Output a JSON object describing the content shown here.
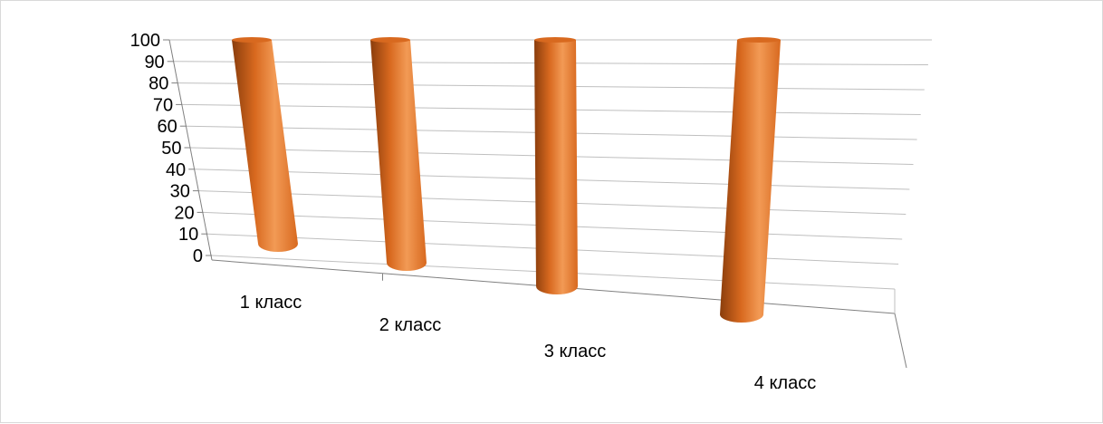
{
  "chart_data": {
    "type": "bar",
    "style": "3d-cylinder",
    "categories": [
      "1 класс",
      "2 класс",
      "3 класс",
      "4 класс"
    ],
    "series": [
      {
        "values": [
          100,
          100,
          100,
          100
        ],
        "color": "#d8691f"
      }
    ],
    "title": "",
    "xlabel": "",
    "ylabel": "",
    "ylim": [
      0,
      100
    ],
    "yticks": [
      "0",
      "10",
      "20",
      "30",
      "40",
      "50",
      "60",
      "70",
      "80",
      "90",
      "100"
    ],
    "grid": true,
    "legend": "none",
    "colors": {
      "bar_main": "#d8691f",
      "bar_dark": "#8a3d0c",
      "bar_light": "#f29a55",
      "grid": "#bfbfbf",
      "axis": "#808080",
      "frame": "#d9d9d9"
    }
  }
}
